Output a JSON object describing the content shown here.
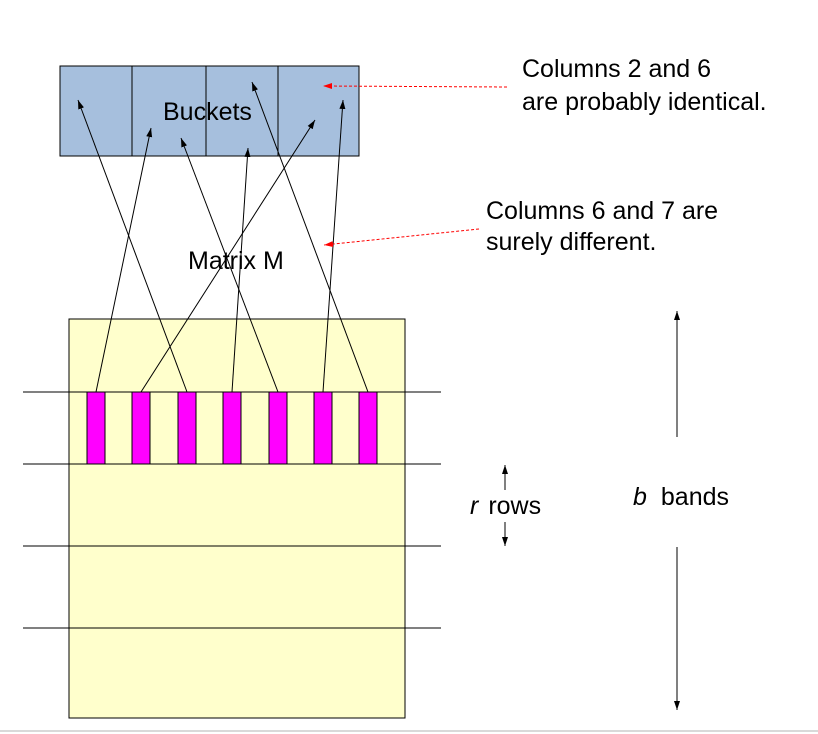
{
  "labels": {
    "buckets": "Buckets",
    "matrix": "Matrix M",
    "note_identical_line1": "Columns 2 and 6",
    "note_identical_line2": "are probably identical.",
    "note_different_line1": "Columns 6 and 7 are",
    "note_different_line2": "surely different.",
    "r_symbol": "r",
    "rows_word": "rows",
    "b_symbol": "b",
    "bands_word": "bands"
  },
  "colors": {
    "bucket_fill": "#a6bfdd",
    "matrix_fill": "#ffffcc",
    "column_fill": "#ff00ff",
    "note_arrow": "#ff0000",
    "stroke": "#000000"
  }
}
